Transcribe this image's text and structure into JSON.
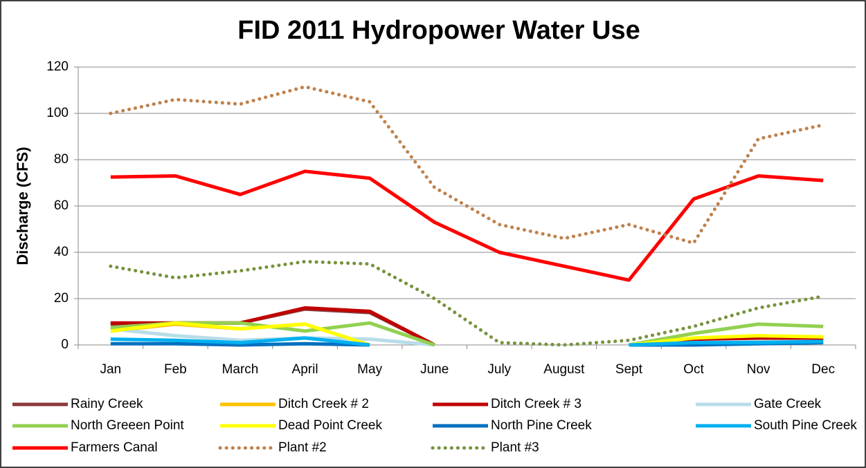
{
  "chart_data": {
    "type": "line",
    "title": "FID 2011 Hydropower Water Use",
    "y_label": "Discharge (CFS)",
    "categories": [
      "Jan",
      "Feb",
      "March",
      "April",
      "May",
      "June",
      "July",
      "August",
      "Sept",
      "Oct",
      "Nov",
      "Dec"
    ],
    "ylim": [
      0,
      120
    ],
    "yticks": [
      0,
      20,
      40,
      60,
      80,
      100,
      120
    ],
    "grid": true,
    "legend": "bottom",
    "series": [
      {
        "name": "Rainy Creek",
        "color": "#8b3a3a",
        "values": [
          9,
          9.5,
          9.5,
          15.5,
          14,
          0,
          null,
          null,
          0,
          1,
          2.5,
          2
        ]
      },
      {
        "name": "Ditch Creek # 2",
        "color": "#ffc000",
        "values": [
          6,
          9,
          7,
          9,
          0,
          null,
          null,
          null,
          0,
          2,
          3.5,
          3
        ]
      },
      {
        "name": "Ditch Creek # 3",
        "color": "#c00000",
        "values": [
          9.5,
          9.5,
          9.5,
          16,
          14.5,
          0,
          null,
          null,
          0,
          1.5,
          3,
          2
        ]
      },
      {
        "name": "Gate Creek",
        "color": "#b7dde8",
        "values": [
          7,
          4,
          2,
          3,
          2.5,
          0,
          null,
          null,
          0,
          1,
          1.5,
          1.5
        ]
      },
      {
        "name": "North Greeen Point",
        "color": "#92d050",
        "values": [
          7.5,
          9.5,
          9.5,
          6,
          9.5,
          0,
          null,
          null,
          0,
          5,
          9,
          8
        ]
      },
      {
        "name": "Dead Point Creek",
        "color": "#ffff00",
        "values": [
          6,
          9.5,
          7,
          9,
          0,
          null,
          null,
          null,
          0,
          3,
          4,
          3.5
        ]
      },
      {
        "name": "North Pine Creek",
        "color": "#0070c0",
        "values": [
          0.5,
          0.5,
          0,
          0.5,
          0,
          null,
          null,
          null,
          0,
          0,
          0.5,
          1
        ]
      },
      {
        "name": "South Pine Creek",
        "color": "#00b0f0",
        "values": [
          2.5,
          2,
          1,
          3,
          0,
          null,
          null,
          null,
          0,
          1,
          1,
          1.5
        ]
      },
      {
        "name": "Farmers Canal",
        "color": "#ff0000",
        "values": [
          72.5,
          73,
          65,
          75,
          72,
          53,
          40,
          34,
          28,
          63,
          73,
          71
        ]
      },
      {
        "name": "Plant #2",
        "color": "#c0804a",
        "dash": "dotted",
        "values": [
          100,
          106,
          104,
          111.5,
          105,
          68,
          52,
          46,
          52,
          44,
          89,
          95
        ]
      },
      {
        "name": "Plant #3",
        "color": "#76923c",
        "dash": "dotted",
        "values": [
          34,
          29,
          32,
          36,
          35,
          20,
          1,
          0,
          2,
          8,
          16,
          21
        ]
      }
    ]
  }
}
